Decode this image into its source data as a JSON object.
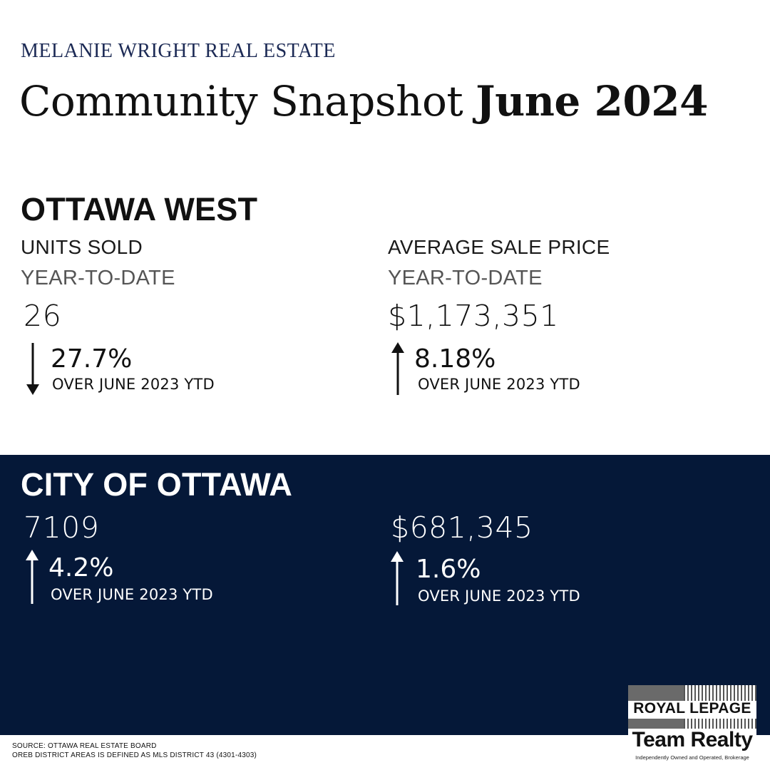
{
  "header": {
    "brand": "MELANIE WRIGHT REAL ESTATE",
    "headline_regular": "Community Snapshot",
    "headline_bold": "June 2024"
  },
  "ottawa_west": {
    "title": "OTTAWA WEST",
    "units": {
      "label": "UNITS SOLD",
      "period": "YEAR-TO-DATE",
      "value": "26",
      "change": "27.7%",
      "direction": "down",
      "comparison": "OVER JUNE 2023 YTD"
    },
    "price": {
      "label": "AVERAGE SALE PRICE",
      "period": "YEAR-TO-DATE",
      "value": "$1,173,351",
      "change": "8.18%",
      "direction": "up",
      "comparison": "OVER JUNE 2023 YTD"
    }
  },
  "city_of_ottawa": {
    "title": "CITY OF OTTAWA",
    "units": {
      "value": "7109",
      "change": "4.2%",
      "direction": "up",
      "comparison": "OVER JUNE 2023 YTD"
    },
    "price": {
      "value": "$681,345",
      "change": "1.6%",
      "direction": "up",
      "comparison": "OVER JUNE 2023 YTD"
    }
  },
  "footer": {
    "source": "SOURCE: OTTAWA REAL ESTATE BOARD",
    "district_note": "OREB DISTRICT AREAS IS DEFINED AS MLS DISTRICT 43 (4301-4303)"
  },
  "logo": {
    "name": "ROYAL LEPAGE",
    "team": "Team Realty",
    "tagline": "Independently Owned and Operated, Brokerage"
  },
  "colors": {
    "brand_navy": "#1c2a55",
    "panel_navy": "#051838",
    "text": "#111111"
  }
}
